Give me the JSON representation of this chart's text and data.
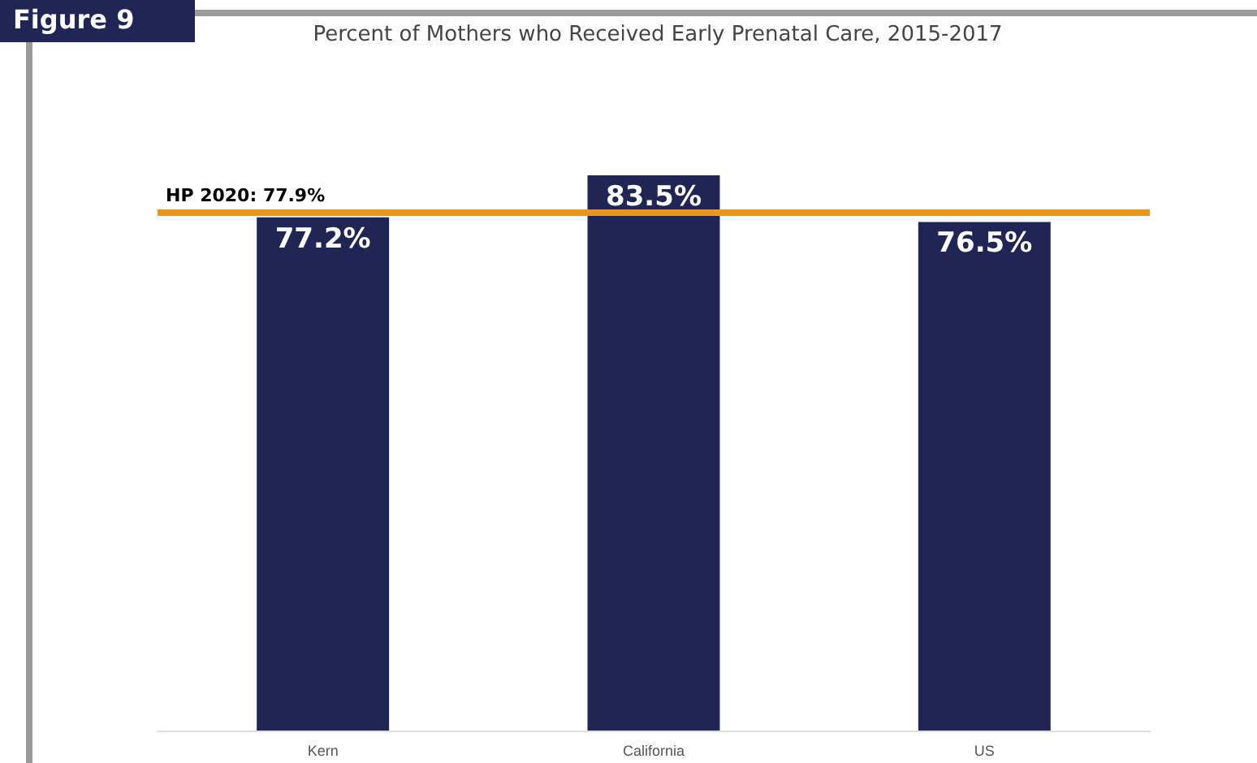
{
  "chart_data": {
    "type": "bar",
    "title": "Percent of Mothers who Received Early Prenatal Care, 2015-2017",
    "categories": [
      "Kern",
      "California",
      "US"
    ],
    "values": [
      77.2,
      83.5,
      76.5
    ],
    "value_labels": [
      "77.2%",
      "83.5%",
      "76.5%"
    ],
    "color": "#1f2555",
    "ref_lines": [
      {
        "axis": "y",
        "value": 77.9,
        "label": "HP 2020: 77.9%",
        "color": "#e8961e"
      }
    ],
    "annotations": [
      "Figure 9"
    ],
    "grid": false
  }
}
